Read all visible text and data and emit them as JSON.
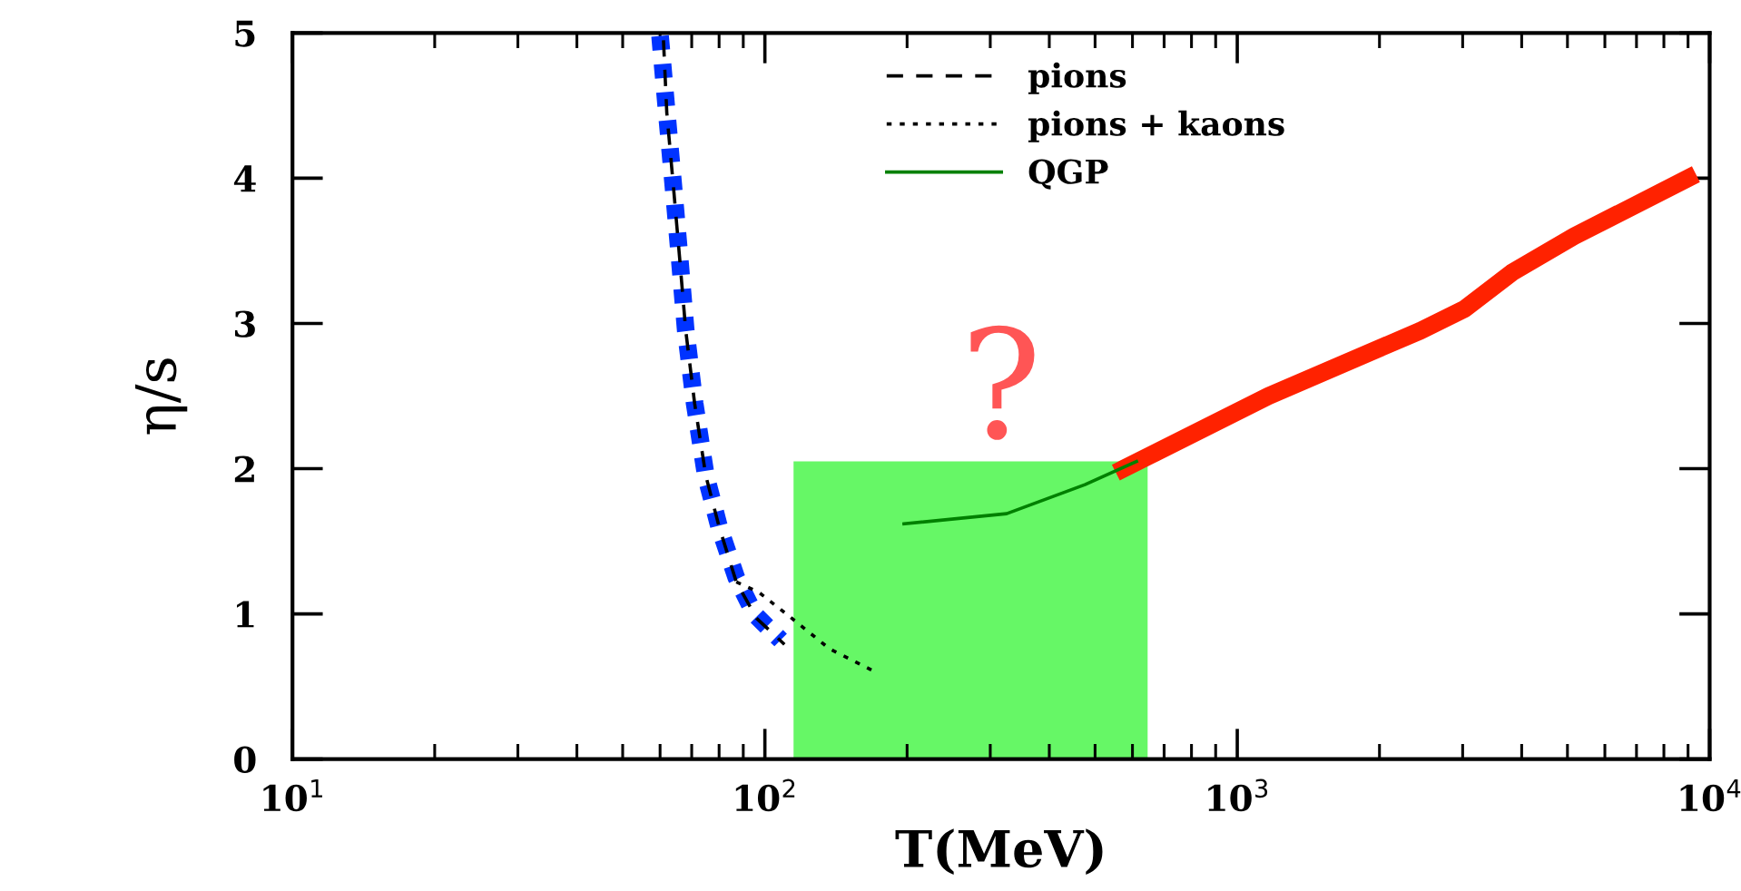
{
  "chart_data": {
    "type": "line",
    "xlabel": "T(MeV)",
    "ylabel": "η/s",
    "log": "x",
    "xlim": [
      10,
      10000
    ],
    "ylim": [
      0,
      5
    ],
    "xticks": [
      {
        "value": 10,
        "label": "10$^{1}$"
      },
      {
        "value": 100,
        "label": "10$^{2}$"
      },
      {
        "value": 1000,
        "label": "10$^{3}$"
      },
      {
        "value": 10000,
        "label": "10$^{4}$"
      }
    ],
    "yticks": [
      0,
      1,
      2,
      3,
      4,
      5
    ],
    "grid": false,
    "legend": "top",
    "annotations": [
      "?"
    ],
    "series": [
      {
        "name": "pions",
        "color": "#000000",
        "line_style": "dashed",
        "x": [
          61,
          62,
          64,
          66,
          68,
          71,
          75,
          80,
          87,
          96,
          110
        ],
        "values": [
          4.95,
          4.45,
          3.95,
          3.45,
          2.95,
          2.45,
          1.95,
          1.6,
          1.22,
          0.97,
          0.79
        ]
      },
      {
        "name": "pions + kaons",
        "color": "#000000",
        "line_style": "dotted",
        "x": [
          87,
          97,
          114,
          137,
          169
        ],
        "values": [
          1.22,
          1.15,
          0.97,
          0.76,
          0.61
        ]
      },
      {
        "name": "QGP",
        "color": "#008000",
        "line_style": "solid",
        "x": [
          197,
          325,
          476,
          612
        ],
        "values": [
          1.62,
          1.69,
          1.89,
          2.05
        ]
      },
      {
        "color": "#0033ff",
        "line_style": "dotted",
        "x": [
          60,
          62,
          64,
          66,
          68,
          71,
          75,
          80,
          87,
          95,
          108
        ],
        "values": [
          4.98,
          4.45,
          3.95,
          3.45,
          2.95,
          2.45,
          1.95,
          1.6,
          1.25,
          1.0,
          0.82
        ]
      },
      {
        "color": "#ff2200",
        "line_style": "solid",
        "x": [
          575,
          1164,
          2442,
          3027,
          3814,
          5164,
          9000
        ],
        "values": [
          2.0,
          2.5,
          2.95,
          3.1,
          3.35,
          3.6,
          4.0
        ]
      },
      {
        "type": "area",
        "color": "#66f766",
        "x": [
          115,
          646
        ],
        "values": [
          2.05,
          2.05
        ]
      }
    ]
  }
}
